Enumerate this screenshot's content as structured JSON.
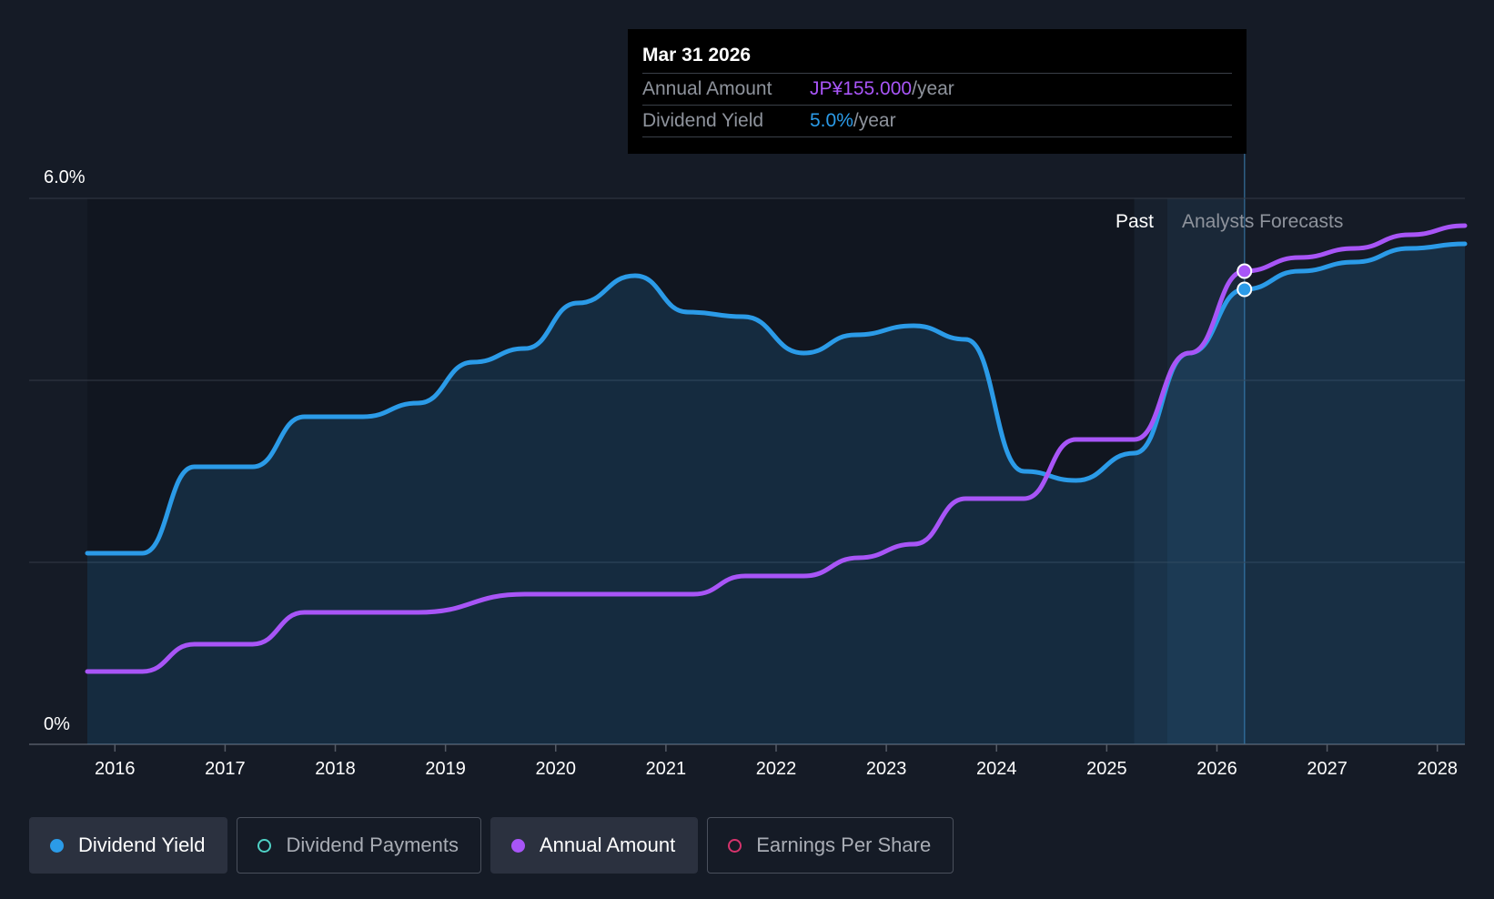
{
  "tooltip": {
    "date": "Mar 31 2026",
    "rows": [
      {
        "label": "Annual Amount",
        "value": "JP¥155.000",
        "unit": "/year",
        "color": "#a855f7"
      },
      {
        "label": "Dividend Yield",
        "value": "5.0%",
        "unit": "/year",
        "color": "#2b9be8"
      }
    ]
  },
  "regions": {
    "past_label": "Past",
    "forecast_label": "Analysts Forecasts"
  },
  "legend": [
    {
      "label": "Dividend Yield",
      "color": "#2b9be8",
      "style": "filled",
      "active": true
    },
    {
      "label": "Dividend Payments",
      "color": "#4fd1c5",
      "style": "hollow",
      "active": false
    },
    {
      "label": "Annual Amount",
      "color": "#a855f7",
      "style": "filled",
      "active": true
    },
    {
      "label": "Earnings Per Share",
      "color": "#d6336c",
      "style": "hollow",
      "active": false
    }
  ],
  "chart_data": {
    "type": "line",
    "y_axis": {
      "min": 0,
      "max": 6.0,
      "unit": "%",
      "tick_labels": [
        "0%",
        "6.0%"
      ],
      "gridlines": [
        0,
        2,
        4,
        6
      ]
    },
    "x_axis": {
      "min": 2015.75,
      "max": 2028.25,
      "tick_labels": [
        "2016",
        "2017",
        "2018",
        "2019",
        "2020",
        "2021",
        "2022",
        "2023",
        "2024",
        "2025",
        "2026",
        "2027",
        "2028"
      ],
      "tick_values": [
        2016,
        2017,
        2018,
        2019,
        2020,
        2021,
        2022,
        2023,
        2024,
        2025,
        2026,
        2027,
        2028
      ]
    },
    "past_end": 2025.25,
    "forecast_start": 2025.55,
    "highlight_x": 2026.25,
    "series": [
      {
        "name": "Dividend Yield",
        "color": "#2b9be8",
        "fill": true,
        "points": [
          [
            2015.75,
            2.1
          ],
          [
            2016.25,
            2.1
          ],
          [
            2016.72,
            3.05
          ],
          [
            2017.25,
            3.05
          ],
          [
            2017.72,
            3.6
          ],
          [
            2018.25,
            3.6
          ],
          [
            2018.75,
            3.75
          ],
          [
            2019.25,
            4.2
          ],
          [
            2019.72,
            4.35
          ],
          [
            2020.2,
            4.85
          ],
          [
            2020.72,
            5.15
          ],
          [
            2021.2,
            4.75
          ],
          [
            2021.7,
            4.7
          ],
          [
            2022.25,
            4.3
          ],
          [
            2022.72,
            4.5
          ],
          [
            2023.25,
            4.6
          ],
          [
            2023.72,
            4.45
          ],
          [
            2024.25,
            3.0
          ],
          [
            2024.72,
            2.9
          ],
          [
            2025.25,
            3.2
          ],
          [
            2025.75,
            4.3
          ],
          [
            2026.25,
            5.0
          ],
          [
            2026.75,
            5.2
          ],
          [
            2027.25,
            5.3
          ],
          [
            2027.75,
            5.45
          ],
          [
            2028.25,
            5.5
          ]
        ]
      },
      {
        "name": "Annual Amount",
        "color": "#a855f7",
        "fill": false,
        "points": [
          [
            2015.75,
            0.8
          ],
          [
            2016.25,
            0.8
          ],
          [
            2016.72,
            1.1
          ],
          [
            2017.25,
            1.1
          ],
          [
            2017.72,
            1.45
          ],
          [
            2018.75,
            1.45
          ],
          [
            2019.72,
            1.65
          ],
          [
            2020.75,
            1.65
          ],
          [
            2021.25,
            1.65
          ],
          [
            2021.72,
            1.85
          ],
          [
            2022.25,
            1.85
          ],
          [
            2022.75,
            2.05
          ],
          [
            2023.25,
            2.2
          ],
          [
            2023.72,
            2.7
          ],
          [
            2024.25,
            2.7
          ],
          [
            2024.72,
            3.35
          ],
          [
            2025.25,
            3.35
          ],
          [
            2025.75,
            4.3
          ],
          [
            2026.25,
            5.2
          ],
          [
            2026.75,
            5.35
          ],
          [
            2027.25,
            5.45
          ],
          [
            2027.75,
            5.6
          ],
          [
            2028.25,
            5.7
          ]
        ]
      }
    ]
  }
}
